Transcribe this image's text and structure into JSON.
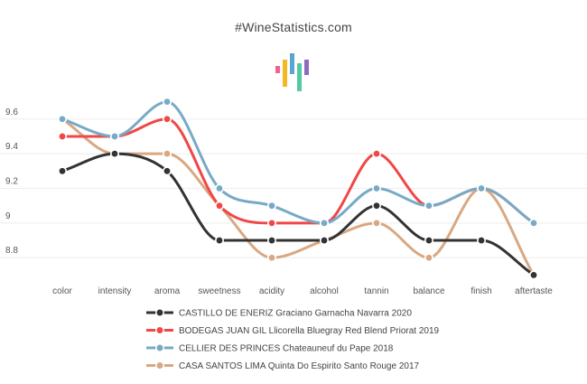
{
  "chart_data": {
    "type": "line",
    "title": "#WineStatistics.com",
    "categories": [
      "color",
      "intensity",
      "aroma",
      "sweetness",
      "acidity",
      "alcohol",
      "tannin",
      "balance",
      "finish",
      "aftertaste"
    ],
    "ylim": [
      8.65,
      9.75
    ],
    "yticks": [
      8.8,
      9,
      9.2,
      9.4,
      9.6
    ],
    "ytick_labels": [
      "8.8",
      "9",
      "9.2",
      "9.4",
      "9.6"
    ],
    "grid": true,
    "legend_position": "bottom",
    "series": [
      {
        "name": "CASTILLO DE ENERIZ Graciano Garnacha Navarra 2020",
        "color": "#333333",
        "values": [
          9.3,
          9.4,
          9.3,
          8.9,
          8.9,
          8.9,
          9.1,
          8.9,
          8.9,
          8.7
        ]
      },
      {
        "name": "BODEGAS JUAN GIL Llicorella Bluegray Red Blend Priorat 2019",
        "color": "#f04747",
        "values": [
          9.5,
          9.5,
          9.6,
          9.1,
          9.0,
          9.0,
          9.4,
          9.1,
          9.2,
          9.0
        ]
      },
      {
        "name": "CELLIER DES PRINCES Chateauneuf du Pape 2018",
        "color": "#77aac6",
        "values": [
          9.6,
          9.5,
          9.7,
          9.2,
          9.1,
          9.0,
          9.2,
          9.1,
          9.2,
          9.0
        ]
      },
      {
        "name": "CASA SANTOS LIMA Quinta Do Espirito Santo Rouge 2017",
        "color": "#d9a882",
        "values": [
          9.6,
          9.4,
          9.4,
          9.1,
          8.8,
          8.9,
          9.0,
          8.8,
          9.2,
          8.7
        ]
      }
    ]
  },
  "logo": {
    "colors": [
      "#f0648a",
      "#f5b823",
      "#5ba4d0",
      "#52c9a4",
      "#8e6bbf"
    ]
  }
}
